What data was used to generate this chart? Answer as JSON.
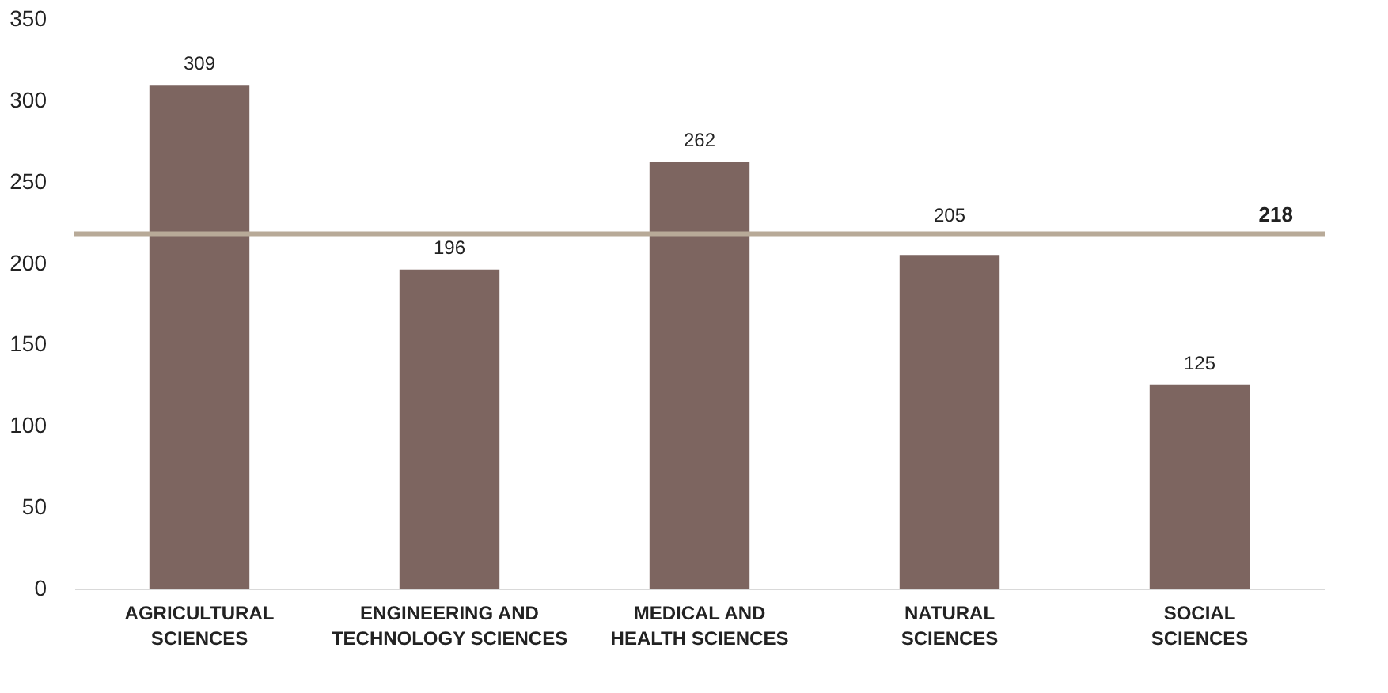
{
  "chart_data": {
    "type": "bar",
    "categories": [
      "AGRICULTURAL SCIENCES",
      "ENGINEERING AND TECHNOLOGY SCIENCES",
      "MEDICAL AND HEALTH SCIENCES",
      "NATURAL SCIENCES",
      "SOCIAL SCIENCES"
    ],
    "values": [
      309,
      196,
      262,
      205,
      125
    ],
    "color": "#7d6560",
    "ylim": [
      0,
      350
    ],
    "yticks": [
      0,
      50,
      100,
      150,
      200,
      250,
      300,
      350
    ],
    "data_labels": true,
    "grid": false,
    "ref_lines": [
      {
        "axis": "y",
        "value": 218,
        "label": "218",
        "color": "#b8aa98"
      }
    ]
  }
}
